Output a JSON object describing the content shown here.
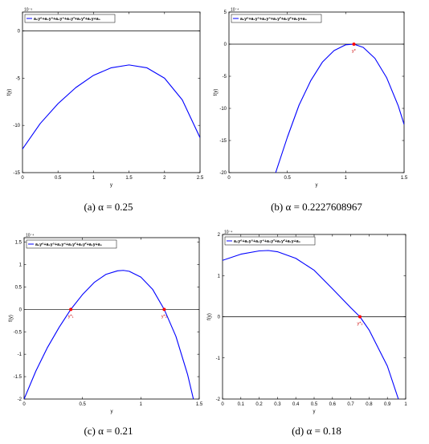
{
  "chart_data": [
    {
      "type": "line",
      "caption": "(a)  α = 0.25",
      "exponent": "10⁻⁵",
      "xlabel": "y",
      "ylabel": "f(y)",
      "xlim": [
        0,
        2.5
      ],
      "ylim": [
        -15,
        2
      ],
      "xticks": [
        0,
        0.5,
        1,
        1.5,
        2,
        2.5
      ],
      "xticklabels": [
        "0",
        "0.5",
        "1",
        "1.5",
        "2",
        "2.5"
      ],
      "yticks": [
        -15,
        -10,
        -5,
        0
      ],
      "yticklabels": [
        "-15",
        "-10",
        "-5",
        "0"
      ],
      "legend": "a₆y⁶+a₅y⁵+a₄y⁴+a₃y³+a₂y²+a₁y+a₀",
      "legend_position": "top-left",
      "series": [
        {
          "x": [
            0,
            0.25,
            0.5,
            0.75,
            1.0,
            1.25,
            1.5,
            1.75,
            2.0,
            2.25,
            2.5
          ],
          "y": [
            -12.5,
            -9.8,
            -7.7,
            -6.0,
            -4.7,
            -3.9,
            -3.6,
            -3.9,
            -5.0,
            -7.3,
            -11.3
          ],
          "color": "#0000ff"
        }
      ],
      "baseline": 0,
      "points": []
    },
    {
      "type": "line",
      "caption": "(b)  α = 0.2227608967",
      "exponent": "10⁻⁴",
      "xlabel": "y",
      "ylabel": "f(y)",
      "xlim": [
        0,
        1.5
      ],
      "ylim": [
        -20,
        5
      ],
      "xticks": [
        0,
        0.5,
        1,
        1.5
      ],
      "xticklabels": [
        "0",
        "0.5",
        "1",
        "1.5"
      ],
      "yticks": [
        -20,
        -15,
        -10,
        -5,
        0,
        5
      ],
      "yticklabels": [
        "-20",
        "-15",
        "-10",
        "-5",
        "0",
        "5"
      ],
      "legend": "a₆y⁶+a₅y⁵+a₄y⁴+a₃y³+a₂y²+a₁y+a₀",
      "legend_position": "top-left",
      "series": [
        {
          "x": [
            0.4,
            0.5,
            0.6,
            0.7,
            0.8,
            0.9,
            1.0,
            1.07,
            1.15,
            1.25,
            1.35,
            1.45,
            1.5
          ],
          "y": [
            -20,
            -14.5,
            -9.5,
            -5.7,
            -2.8,
            -1.0,
            -0.1,
            0,
            -0.5,
            -2.2,
            -5.2,
            -9.6,
            -12.5
          ],
          "color": "#0000ff"
        }
      ],
      "baseline": 0,
      "points": [
        {
          "x": 1.07,
          "y": 0,
          "label": "y*"
        }
      ]
    },
    {
      "type": "line",
      "caption": "(c)  α = 0.21",
      "exponent": "10⁻⁴",
      "xlabel": "y",
      "ylabel": "f(y)",
      "xlim": [
        0,
        1.5
      ],
      "ylim": [
        -2,
        1.6
      ],
      "xticks": [
        0,
        0.5,
        1,
        1.5
      ],
      "xticklabels": [
        "0",
        "0.5",
        "1",
        "1.5"
      ],
      "yticks": [
        -2,
        -1.5,
        -1,
        -0.5,
        0,
        0.5,
        1,
        1.5
      ],
      "yticklabels": [
        "-2",
        "-1.5",
        "-1",
        "-0.5",
        "0",
        "0.5",
        "1",
        "1.5"
      ],
      "legend": "a₆y⁶+a₅y⁵+a₄y⁴+a₃y³+a₂y²+a₁y+a₀",
      "legend_position": "top-left",
      "series": [
        {
          "x": [
            0,
            0.1,
            0.2,
            0.3,
            0.4,
            0.5,
            0.6,
            0.7,
            0.8,
            0.85,
            0.9,
            1.0,
            1.1,
            1.2,
            1.3,
            1.4,
            1.45
          ],
          "y": [
            -2.0,
            -1.38,
            -0.85,
            -0.4,
            0.0,
            0.33,
            0.6,
            0.78,
            0.86,
            0.87,
            0.85,
            0.72,
            0.45,
            0.0,
            -0.6,
            -1.45,
            -2.0
          ],
          "color": "#0000ff"
        }
      ],
      "baseline": 0,
      "points": [
        {
          "x": 0.4,
          "y": 0,
          "label": "y*₁"
        },
        {
          "x": 1.2,
          "y": 0,
          "label": "y*₂"
        }
      ]
    },
    {
      "type": "line",
      "caption": "(d)  α = 0.18",
      "exponent": "10⁻⁴",
      "xlabel": "y",
      "ylabel": "f(y)",
      "xlim": [
        0,
        1
      ],
      "ylim": [
        -2,
        2
      ],
      "xticks": [
        0,
        0.1,
        0.2,
        0.3,
        0.4,
        0.5,
        0.6,
        0.7,
        0.8,
        0.9,
        1
      ],
      "xticklabels": [
        "0",
        "0.1",
        "0.2",
        "0.3",
        "0.4",
        "0.5",
        "0.6",
        "0.7",
        "0.8",
        "0.9",
        "1"
      ],
      "yticks": [
        -2,
        -1,
        0,
        1,
        2
      ],
      "yticklabels": [
        "-2",
        "-1",
        "0",
        "1",
        "2"
      ],
      "legend": "a₆y⁶+a₅y⁵+a₄y⁴+a₃y³+a₂y²+a₁y+a₀",
      "legend_position": "top-left",
      "series": [
        {
          "x": [
            0,
            0.1,
            0.2,
            0.25,
            0.3,
            0.4,
            0.5,
            0.6,
            0.7,
            0.75,
            0.8,
            0.9,
            0.96
          ],
          "y": [
            1.37,
            1.52,
            1.6,
            1.61,
            1.58,
            1.42,
            1.13,
            0.68,
            0.22,
            0.0,
            -0.32,
            -1.2,
            -2.0
          ],
          "color": "#0000ff"
        }
      ],
      "baseline": 0,
      "points": [
        {
          "x": 0.75,
          "y": 0,
          "label": "y*₂"
        }
      ]
    }
  ]
}
